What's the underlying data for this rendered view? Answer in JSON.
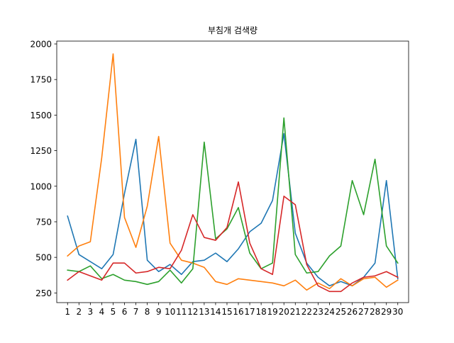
{
  "chart_data": {
    "type": "line",
    "title": "부침개 검색량",
    "xlabel": "",
    "ylabel": "",
    "x": [
      1,
      2,
      3,
      4,
      5,
      6,
      7,
      8,
      9,
      10,
      11,
      12,
      13,
      14,
      15,
      16,
      17,
      18,
      19,
      20,
      21,
      22,
      23,
      24,
      25,
      26,
      27,
      28,
      29,
      30
    ],
    "x_tick_labels": [
      "1",
      "2",
      "3",
      "4",
      "5",
      "6",
      "7",
      "8",
      "9",
      "10",
      "11",
      "12",
      "13",
      "14",
      "15",
      "16",
      "17",
      "18",
      "19",
      "20",
      "21",
      "22",
      "23",
      "24",
      "25",
      "26",
      "27",
      "28",
      "29",
      "30"
    ],
    "y_ticks": [
      250,
      500,
      750,
      1000,
      1250,
      1500,
      1750,
      2000
    ],
    "y_tick_labels": [
      "250",
      "500",
      "750",
      "1000",
      "1250",
      "1500",
      "1750",
      "2000"
    ],
    "xlim": [
      0.05,
      30.95
    ],
    "ylim": [
      182,
      2020
    ],
    "grid": false,
    "legend": "none",
    "series": [
      {
        "color": "#1f77b4",
        "values": [
          790,
          520,
          470,
          420,
          520,
          950,
          1330,
          480,
          400,
          450,
          380,
          470,
          480,
          530,
          470,
          560,
          680,
          740,
          900,
          1370,
          670,
          460,
          360,
          300,
          330,
          300,
          360,
          460,
          1040,
          350
        ]
      },
      {
        "color": "#ff7f0e",
        "values": [
          510,
          580,
          610,
          1200,
          1930,
          780,
          570,
          860,
          1350,
          600,
          480,
          460,
          430,
          330,
          310,
          350,
          340,
          330,
          320,
          300,
          340,
          270,
          320,
          280,
          350,
          300,
          350,
          360,
          290,
          340
        ]
      },
      {
        "color": "#2ca02c",
        "values": [
          410,
          400,
          440,
          350,
          380,
          340,
          330,
          310,
          330,
          410,
          320,
          420,
          1310,
          630,
          700,
          850,
          530,
          420,
          460,
          1480,
          520,
          390,
          400,
          510,
          580,
          1040,
          800,
          1190,
          580,
          460
        ]
      },
      {
        "color": "#d62728",
        "values": [
          340,
          400,
          370,
          340,
          460,
          460,
          390,
          400,
          430,
          420,
          550,
          800,
          640,
          620,
          710,
          1030,
          600,
          420,
          380,
          930,
          870,
          450,
          300,
          260,
          260,
          320,
          360,
          370,
          400,
          360
        ]
      }
    ]
  }
}
